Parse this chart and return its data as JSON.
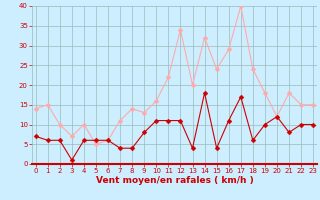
{
  "hours": [
    0,
    1,
    2,
    3,
    4,
    5,
    6,
    7,
    8,
    9,
    10,
    11,
    12,
    13,
    14,
    15,
    16,
    17,
    18,
    19,
    20,
    21,
    22,
    23
  ],
  "wind_avg": [
    7,
    6,
    6,
    1,
    6,
    6,
    6,
    4,
    4,
    8,
    11,
    11,
    11,
    4,
    18,
    4,
    11,
    17,
    6,
    10,
    12,
    8,
    10,
    10
  ],
  "wind_gust": [
    14,
    15,
    10,
    7,
    10,
    5,
    6,
    11,
    14,
    13,
    16,
    22,
    34,
    20,
    32,
    24,
    29,
    40,
    24,
    18,
    12,
    18,
    15,
    15
  ],
  "avg_color": "#cc0000",
  "gust_color": "#ffaaaa",
  "bg_color": "#cceeff",
  "grid_color": "#99bbbb",
  "xlabel": "Vent moyen/en rafales ( km/h )",
  "ylim": [
    0,
    40
  ],
  "yticks": [
    0,
    5,
    10,
    15,
    20,
    25,
    30,
    35,
    40
  ],
  "xticks": [
    0,
    1,
    2,
    3,
    4,
    5,
    6,
    7,
    8,
    9,
    10,
    11,
    12,
    13,
    14,
    15,
    16,
    17,
    18,
    19,
    20,
    21,
    22,
    23
  ],
  "xlabel_color": "#cc0000",
  "tick_color": "#cc0000",
  "markersize": 2.5
}
